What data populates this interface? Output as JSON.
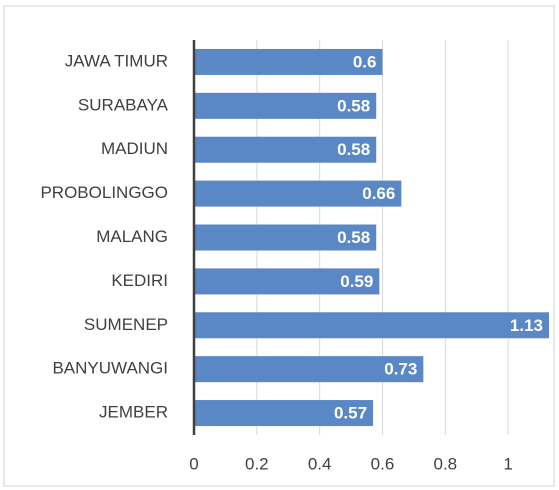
{
  "chart_data": {
    "type": "bar",
    "orientation": "horizontal",
    "categories": [
      "JAWA TIMUR",
      "SURABAYA",
      "MADIUN",
      "PROBOLINGGO",
      "MALANG",
      "KEDIRI",
      "SUMENEP",
      "BANYUWANGI",
      "JEMBER"
    ],
    "values": [
      0.6,
      0.58,
      0.58,
      0.66,
      0.58,
      0.59,
      1.13,
      0.73,
      0.57
    ],
    "color": "#5a87c5",
    "xlim": [
      0,
      1.13
    ],
    "xticks": [
      0,
      0.2,
      0.4,
      0.6,
      0.8,
      1
    ],
    "grid": true
  }
}
